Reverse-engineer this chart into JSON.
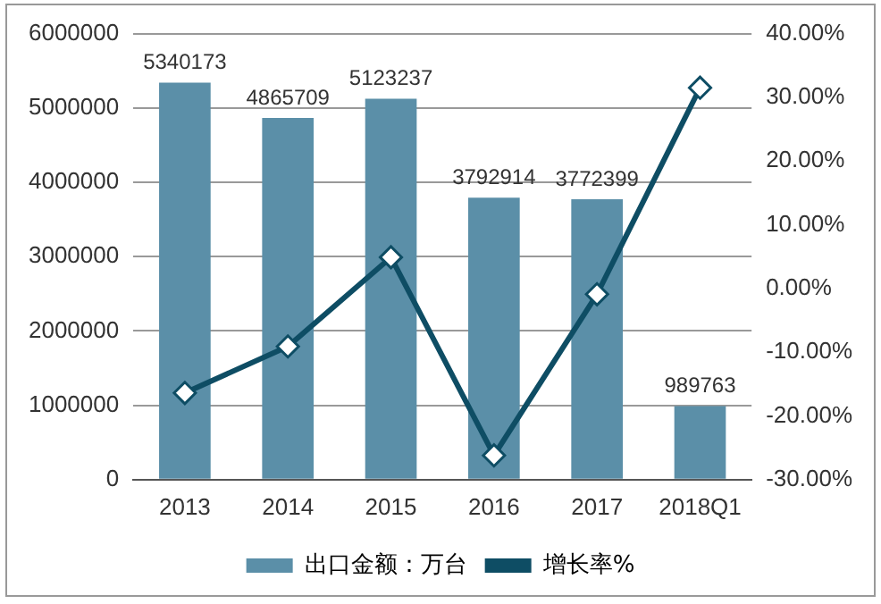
{
  "chart_data": {
    "type": "bar",
    "categories": [
      "2013",
      "2014",
      "2015",
      "2016",
      "2017",
      "2018Q1"
    ],
    "series": [
      {
        "name": "出口金额：万台",
        "color": "#5b8fa8",
        "values": [
          5340173,
          4865709,
          5123237,
          3792914,
          3772399,
          989763
        ],
        "value_labels": [
          "5340173",
          "4865709",
          "5123237",
          "3792914",
          "3772399",
          "989763"
        ]
      },
      {
        "type": "line",
        "name": "增长率%",
        "color": "#0e4d64",
        "axis": "y2",
        "values": [
          -16.4,
          -9.1,
          4.9,
          -26.2,
          -0.9,
          31.5
        ]
      }
    ],
    "ylim": [
      0,
      6000000
    ],
    "yticks": [
      0,
      1000000,
      2000000,
      3000000,
      4000000,
      5000000,
      6000000
    ],
    "y2lim": [
      -30,
      40
    ],
    "y2ticks": [
      {
        "value": -30,
        "label": "-30.00%"
      },
      {
        "value": -20,
        "label": "-20.00%"
      },
      {
        "value": -10,
        "label": "-10.00%"
      },
      {
        "value": 0,
        "label": "0.00%"
      },
      {
        "value": 10,
        "label": "10.00%"
      },
      {
        "value": 20,
        "label": "20.00%"
      },
      {
        "value": 30,
        "label": "30.00%"
      },
      {
        "value": 40,
        "label": "40.00%"
      }
    ],
    "grid": "y",
    "legend": "bottom",
    "marker": "diamond",
    "line_style": "solid"
  }
}
